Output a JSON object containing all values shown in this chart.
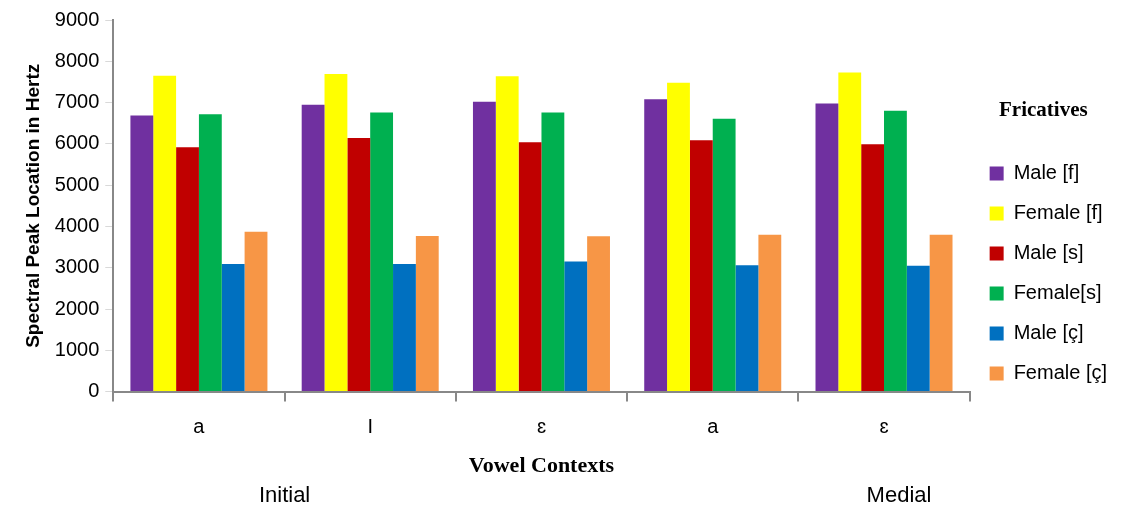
{
  "chart_data": {
    "type": "bar",
    "xlabel": "Vowel Contexts",
    "ylabel": "Spectral Peak Location in Hertz",
    "legend_title": "Fricatives",
    "legend": "right",
    "categories": [
      "a",
      "I",
      "ɛ",
      "a",
      "ɛ"
    ],
    "series": [
      {
        "name": "Male [f]",
        "color": "#7030a0",
        "values": [
          6690,
          6950,
          7020,
          7080,
          6980
        ]
      },
      {
        "name": "Female [f]",
        "color": "#ffff00",
        "values": [
          7650,
          7690,
          7640,
          7480,
          7730
        ]
      },
      {
        "name": "Male [s]",
        "color": "#c00000",
        "values": [
          5920,
          6140,
          6040,
          6090,
          5990
        ]
      },
      {
        "name": "Female[s]",
        "color": "#00b050",
        "values": [
          6720,
          6760,
          6760,
          6610,
          6800
        ]
      },
      {
        "name": "Male [ç]",
        "color": "#0070c0",
        "values": [
          3090,
          3090,
          3150,
          3060,
          3050
        ]
      },
      {
        "name": "Female [ç]",
        "color": "#f79646",
        "values": [
          3870,
          3770,
          3760,
          3800,
          3800
        ]
      }
    ],
    "ylim": [
      0,
      9000
    ],
    "yticks": [
      0,
      1000,
      2000,
      3000,
      4000,
      5000,
      6000,
      7000,
      8000,
      9000
    ],
    "grid": false,
    "annotations": [
      "Initial",
      "Medial"
    ]
  }
}
